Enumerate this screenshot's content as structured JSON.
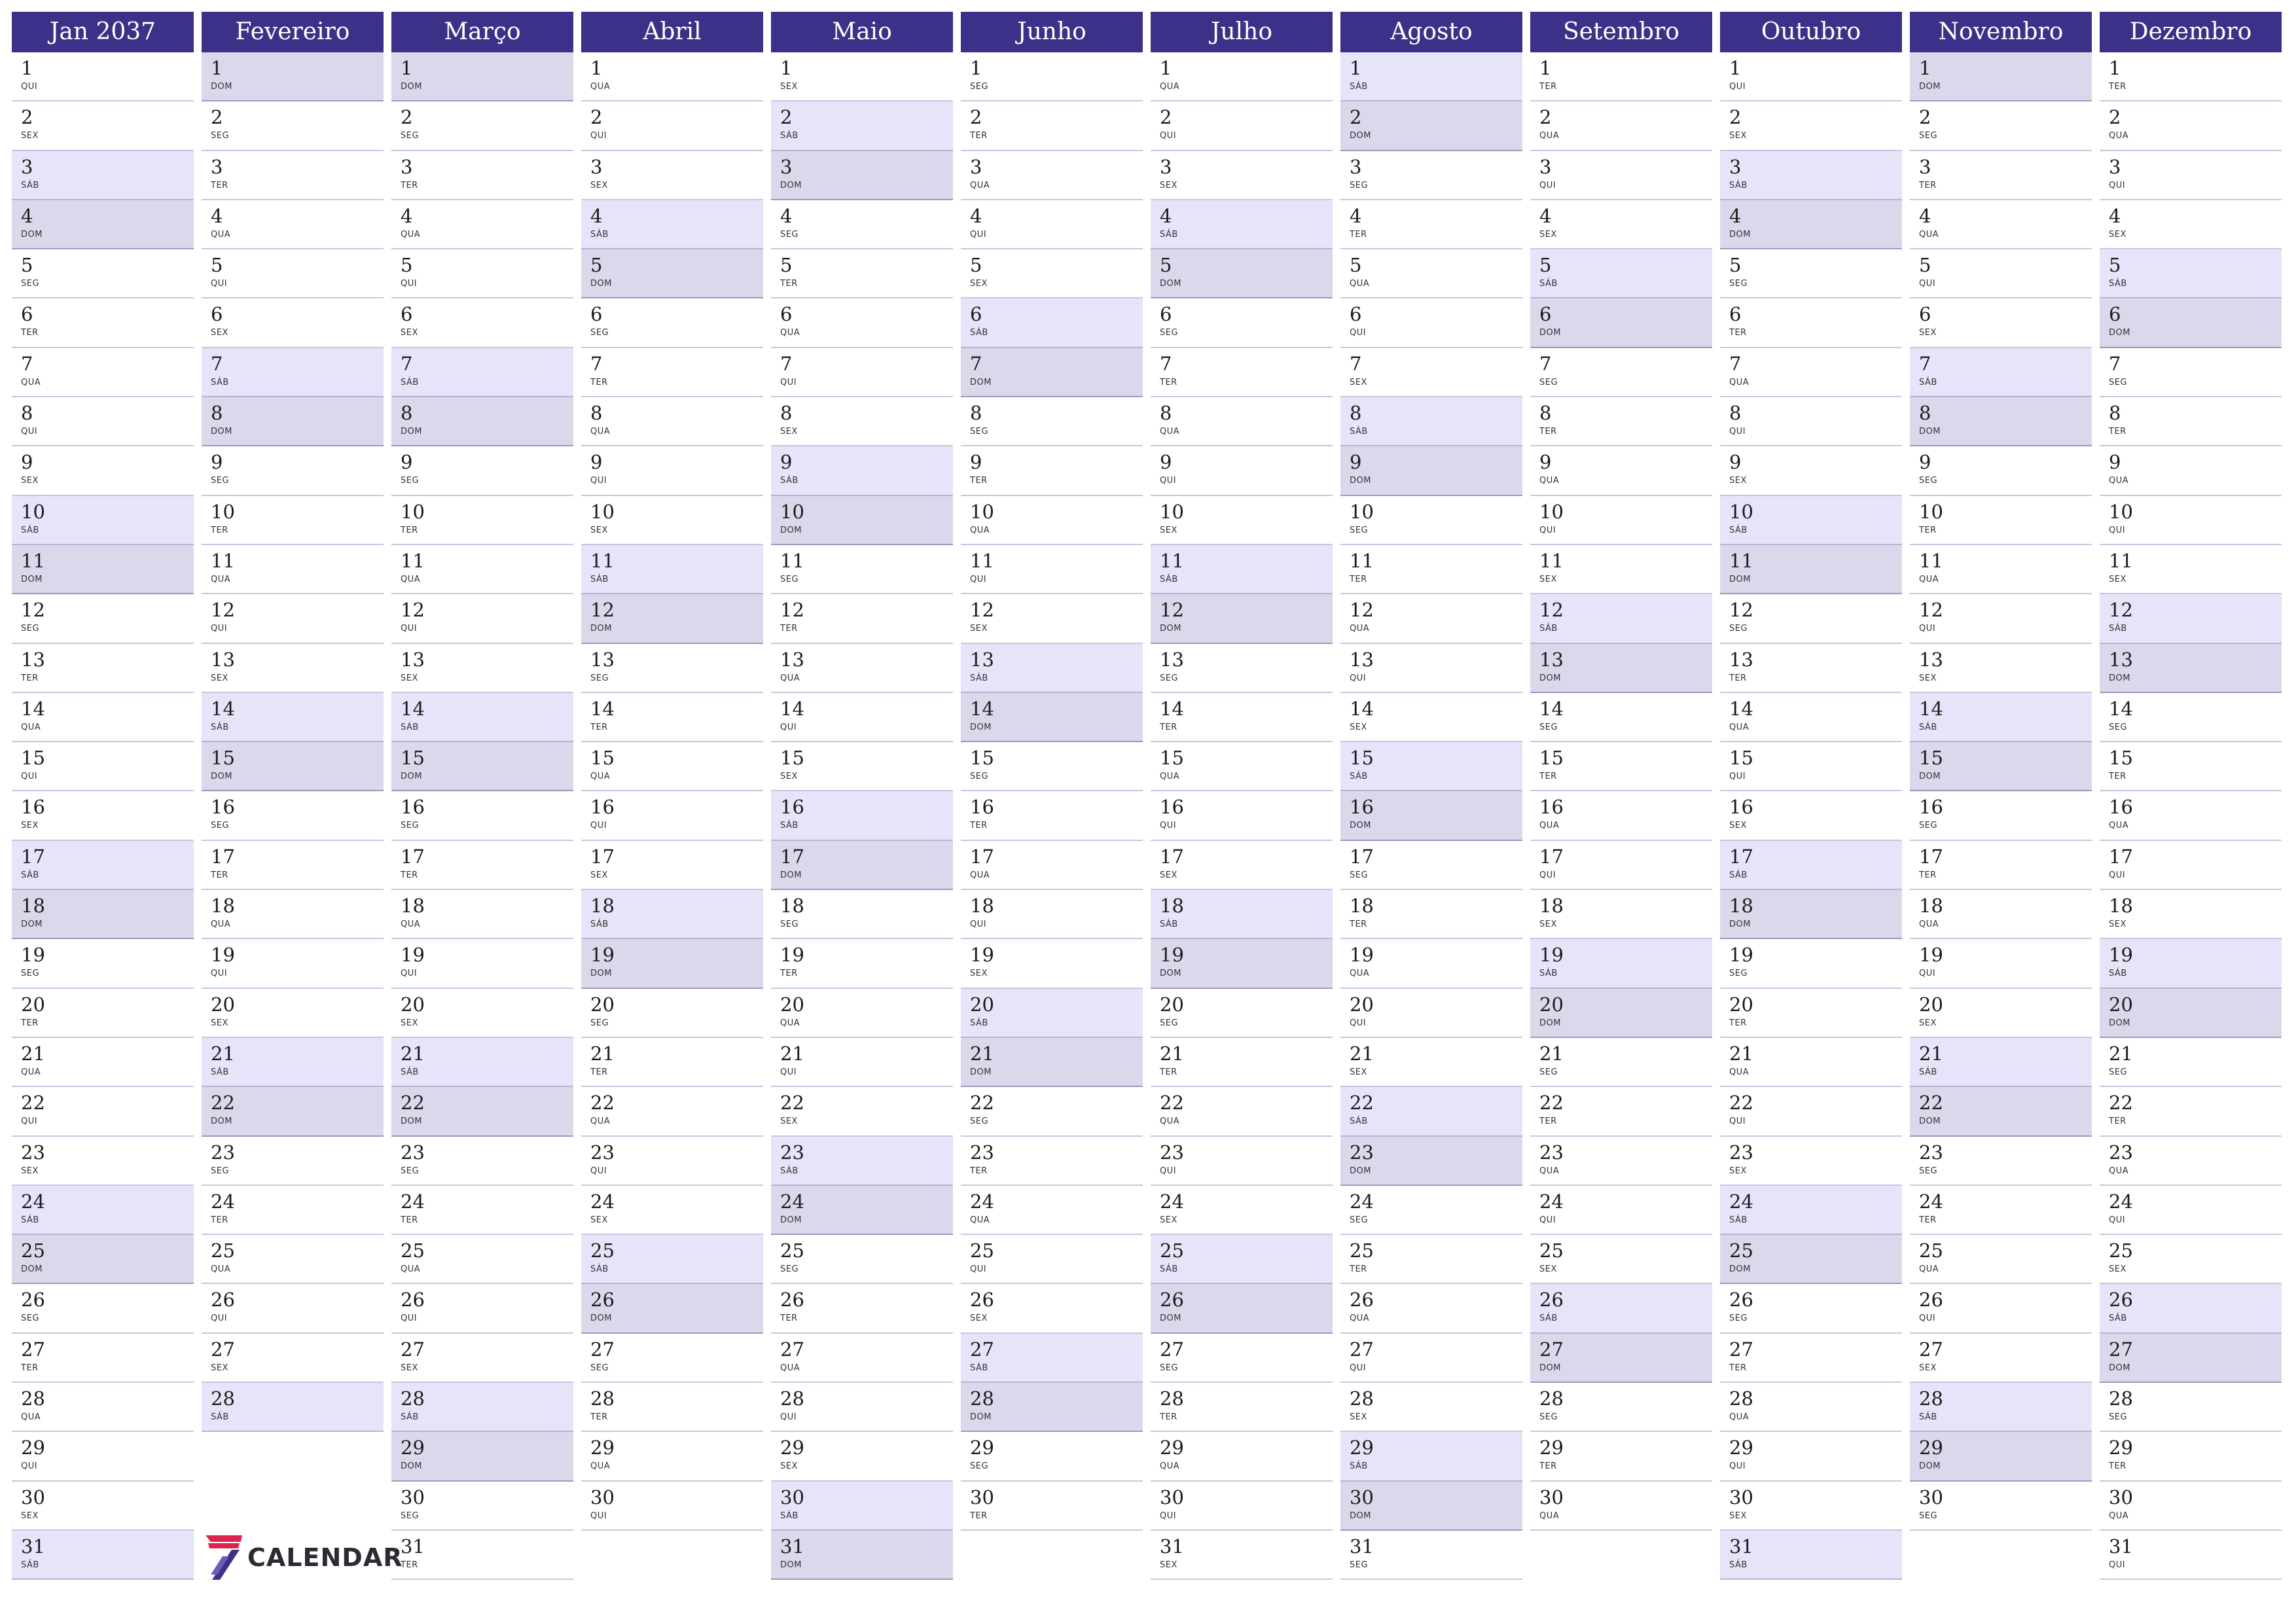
{
  "year": 2037,
  "months": [
    {
      "name": "Jan 2037",
      "days": 31,
      "start": 4
    },
    {
      "name": "Fevereiro",
      "days": 28,
      "start": 0
    },
    {
      "name": "Março",
      "days": 31,
      "start": 0
    },
    {
      "name": "Abril",
      "days": 30,
      "start": 3
    },
    {
      "name": "Maio",
      "days": 31,
      "start": 5
    },
    {
      "name": "Junho",
      "days": 30,
      "start": 1
    },
    {
      "name": "Julho",
      "days": 31,
      "start": 3
    },
    {
      "name": "Agosto",
      "days": 31,
      "start": 6
    },
    {
      "name": "Setembro",
      "days": 30,
      "start": 2
    },
    {
      "name": "Outubro",
      "days": 31,
      "start": 4
    },
    {
      "name": "Novembro",
      "days": 30,
      "start": 0
    },
    {
      "name": "Dezembro",
      "days": 31,
      "start": 2
    }
  ],
  "weekday_abbrev": [
    "DOM",
    "SEG",
    "TER",
    "QUA",
    "QUI",
    "SEX",
    "SÁB"
  ],
  "logo": {
    "mark": "7",
    "text": "CALENDAR",
    "icon": "calendar-logo-icon"
  },
  "colors": {
    "header": "#3b3188",
    "saturday": "#e6e4f8",
    "sunday": "#dcd8ec",
    "logo_accent": "#e0224e",
    "logo_dark": "#3b3188"
  }
}
